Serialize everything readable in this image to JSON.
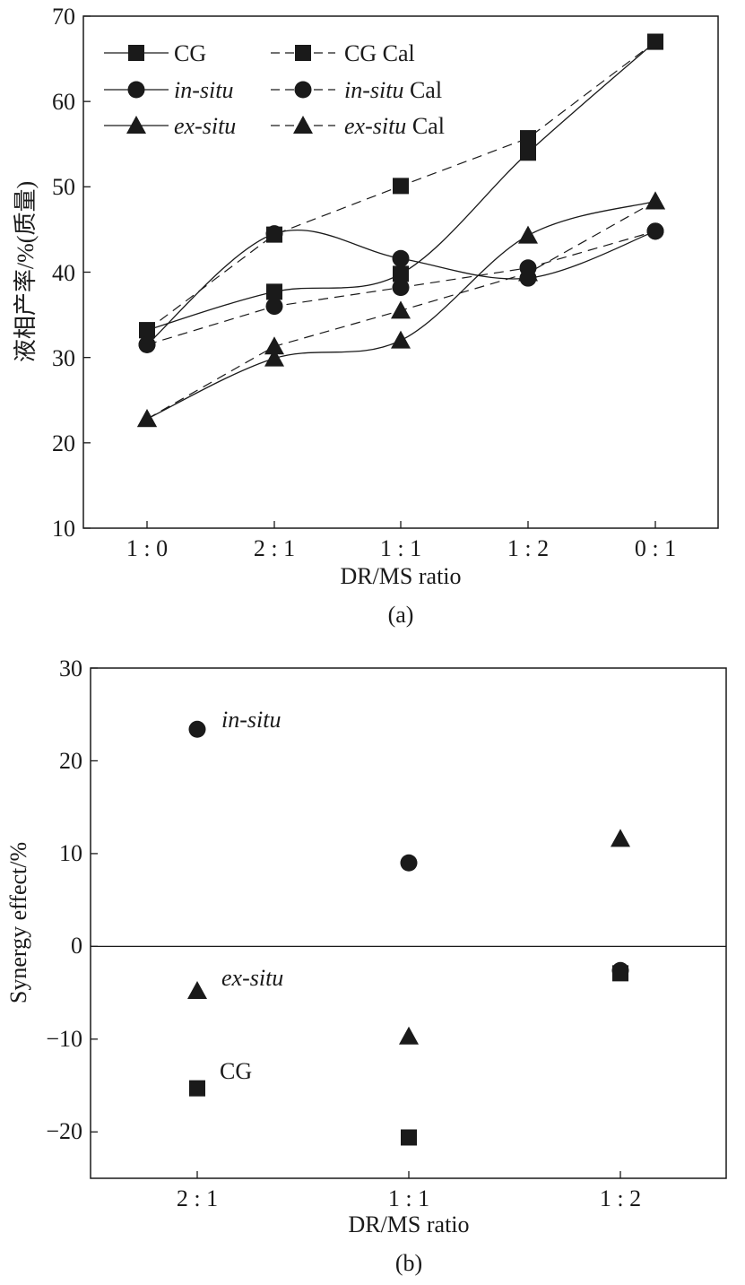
{
  "chart_data": [
    {
      "panel_label": "(a)",
      "type": "line",
      "categories": [
        "1 : 0",
        "2 : 1",
        "1 : 1",
        "1 : 2",
        "0 : 1"
      ],
      "xlabel": "DR/MS ratio",
      "ylabel": "液相产率/%(质量)",
      "ylim": [
        10,
        70
      ],
      "yticks": [
        "10",
        "20",
        "30",
        "40",
        "50",
        "60",
        "70"
      ],
      "grid": false,
      "legend_position": "top-left",
      "series": [
        {
          "name": "CG",
          "name_main": "CG",
          "name_suffix": "",
          "marker": "square",
          "dashed": false,
          "values": [
            33.2,
            37.7,
            39.8,
            54,
            67
          ]
        },
        {
          "name": "CG Cal",
          "name_main": "CG",
          "name_suffix": " Cal",
          "marker": "square",
          "dashed": true,
          "values": [
            33.2,
            44.4,
            50.1,
            55.7,
            67
          ]
        },
        {
          "name": "in-situ",
          "name_main": "in-situ",
          "name_suffix": "",
          "marker": "circle",
          "dashed": false,
          "values": [
            31.5,
            44.5,
            41.6,
            39.3,
            44.8
          ]
        },
        {
          "name": "in-situ Cal",
          "name_main": "in-situ",
          "name_suffix": " Cal",
          "marker": "circle",
          "dashed": true,
          "values": [
            31.5,
            36,
            38.2,
            40.5,
            44.8
          ]
        },
        {
          "name": "ex-situ",
          "name_main": "ex-situ",
          "name_suffix": "",
          "marker": "triangle",
          "dashed": false,
          "values": [
            22.8,
            29.9,
            32,
            44.3,
            48.3
          ]
        },
        {
          "name": "ex-situ Cal",
          "name_main": "ex-situ",
          "name_suffix": " Cal",
          "marker": "triangle",
          "dashed": true,
          "values": [
            22.8,
            31.3,
            35.5,
            39.9,
            48.3
          ]
        }
      ]
    },
    {
      "panel_label": "(b)",
      "type": "scatter",
      "categories": [
        "2 : 1",
        "1 : 1",
        "1 : 2"
      ],
      "xlabel": "DR/MS ratio",
      "ylabel": "Synergy effect/%",
      "ylim": [
        -25,
        30
      ],
      "yticks": [
        "−20",
        "−10",
        "0",
        "10",
        "20",
        "30"
      ],
      "grid": false,
      "zero_line": true,
      "series": [
        {
          "label": "in-situ",
          "marker": "circle",
          "values": [
            23.4,
            9,
            -2.6
          ]
        },
        {
          "label": "ex-situ",
          "marker": "triangle",
          "values": [
            -4.8,
            -9.7,
            11.6
          ]
        },
        {
          "label": "CG",
          "marker": "square",
          "values": [
            -15.3,
            -20.6,
            -2.9
          ]
        }
      ]
    }
  ]
}
